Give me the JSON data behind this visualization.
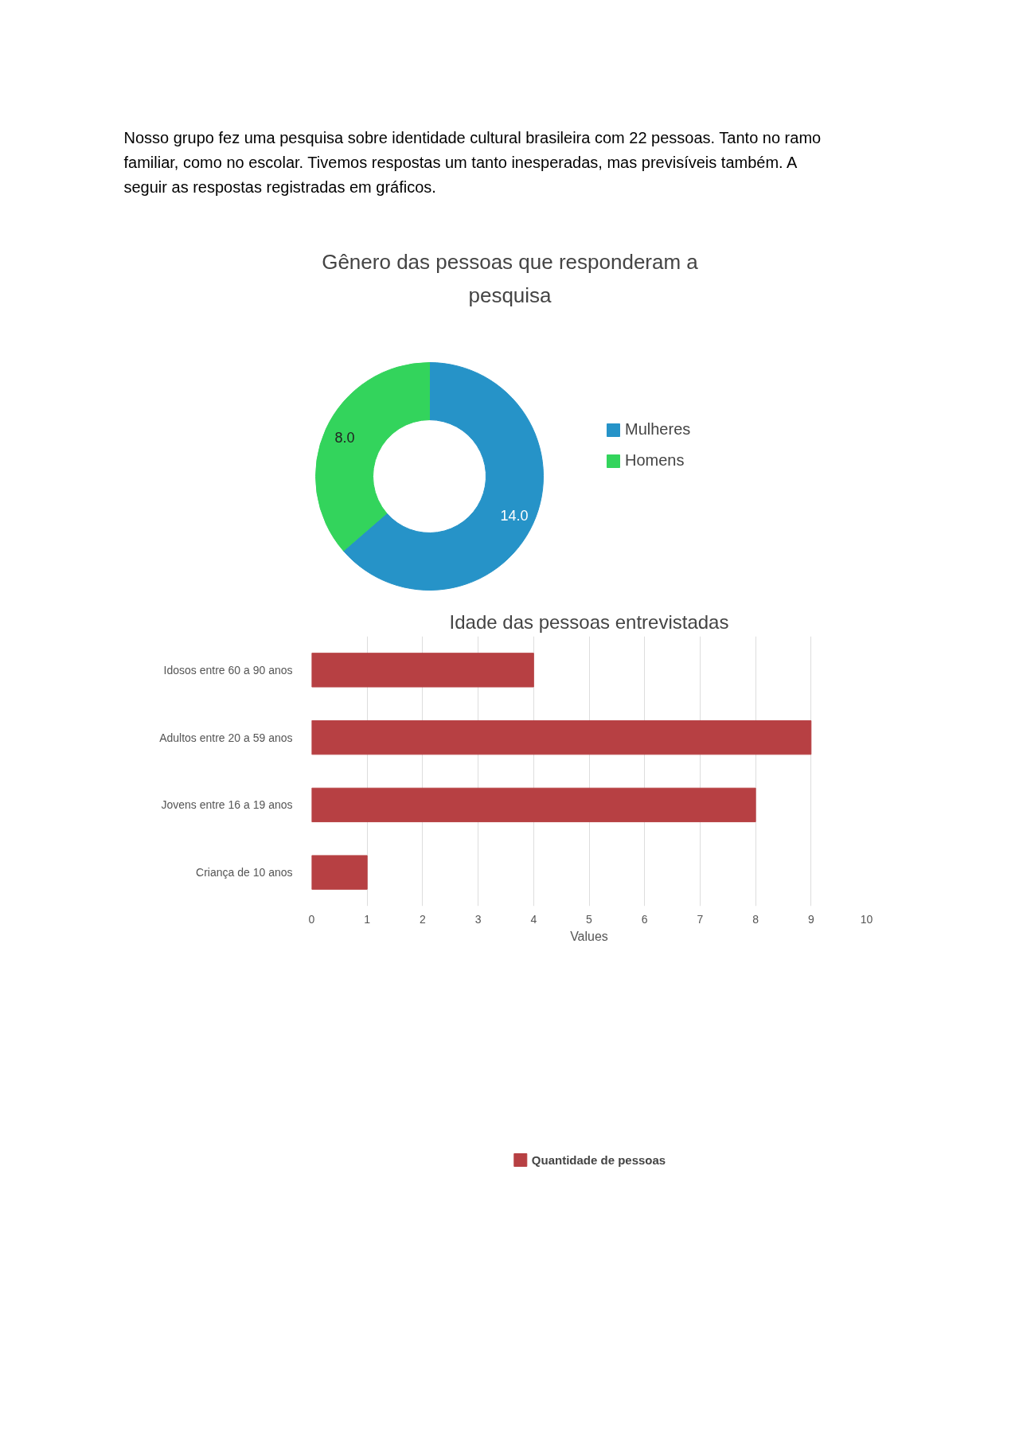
{
  "chart_data": [
    {
      "type": "donut",
      "title": "Gênero das pessoas que responderam a pesquisa",
      "categories": [
        "Mulheres",
        "Homens"
      ],
      "values": [
        14,
        8
      ],
      "colors": [
        "#2693c8",
        "#33d45c"
      ],
      "value_labels": [
        "14.0",
        "8.0"
      ],
      "legend": "right",
      "annotations": [
        "Nosso grupo fez uma pesquisa sobre identidade cultural brasileira com 22 pessoas. Tanto no ramo familiar, como no escolar. Tivemos respostas um tanto inesperadas, mas previsíveis também. A seguir as respostas registradas em gráficos."
      ]
    },
    {
      "type": "bar",
      "orientation": "horizontal",
      "title": "Idade das pessoas entrevistadas",
      "categories": [
        "Idosos entre 60 a 90 anos",
        "Adultos entre 20 a 59 anos",
        "Jovens entre 16 a 19 anos",
        "Criança de 10 anos"
      ],
      "series": [
        {
          "name": "Quantidade de pessoas",
          "color": "#b74043",
          "values": [
            4,
            9,
            8,
            1
          ]
        }
      ],
      "xlim": [
        0,
        10
      ],
      "xticks": [
        0,
        1,
        2,
        3,
        4,
        5,
        6,
        7,
        8,
        9,
        10
      ],
      "xlabel": "Values",
      "grid": "x",
      "legend": "bottom"
    }
  ]
}
